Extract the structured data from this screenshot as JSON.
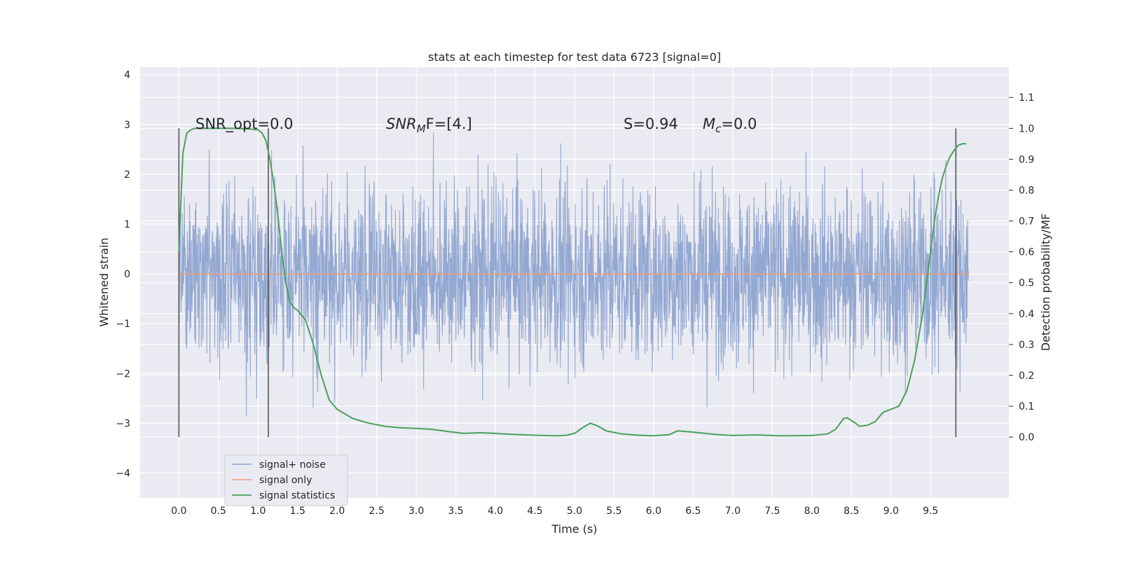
{
  "chart_data": {
    "type": "line",
    "title": "stats at each timestep for test data 6723 [signal=0]",
    "xlabel": "Time (s)",
    "ylabel_left": "Whitened strain",
    "ylabel_right": "Detection probability/MF",
    "xlim": [
      -0.49,
      10.49
    ],
    "ylim_left": [
      -4.5,
      4.15
    ],
    "ylim_right": [
      -0.197,
      1.198
    ],
    "xticks": [
      "0.0",
      "0.5",
      "1.0",
      "1.5",
      "2.0",
      "2.5",
      "3.0",
      "3.5",
      "4.0",
      "4.5",
      "5.0",
      "5.5",
      "6.0",
      "6.5",
      "7.0",
      "7.5",
      "8.0",
      "8.5",
      "9.0",
      "9.5"
    ],
    "yticks_left": [
      "4",
      "3",
      "2",
      "1",
      "0",
      "−1",
      "−2",
      "−3",
      "−4"
    ],
    "yticks_right": [
      "1.1",
      "1.0",
      "0.9",
      "0.8",
      "0.7",
      "0.6",
      "0.5",
      "0.4",
      "0.3",
      "0.2",
      "0.1",
      "0.0"
    ],
    "grid": true,
    "legend_position": "bottom-left",
    "annotations": {
      "snr_opt": "SNR_opt=0.0",
      "snr_mf_main": "SNR",
      "snr_mf_sub": "M",
      "snr_mf_rest": "F=[4.]",
      "s_value": "S=0.94",
      "mc_main": "M",
      "mc_sub": "c",
      "mc_rest": "=0.0"
    },
    "vertical_markers_x": [
      0.0,
      1.13,
      9.82
    ],
    "series": [
      {
        "name": "signal+ noise",
        "color": "#8ea4cf",
        "x_range": [
          0.0,
          9.98
        ],
        "description_values": {
          "typical_amplitude": 1.0,
          "peak_max": 3.7,
          "peak_min": -3.5
        }
      },
      {
        "name": "signal only",
        "color": "#e8a07d",
        "x": [
          0.0,
          9.98
        ],
        "y": [
          0.0,
          0.0
        ]
      },
      {
        "name": "signal statistics",
        "color": "#4c9f5c",
        "x": [
          0.0,
          0.05,
          0.1,
          0.15,
          0.2,
          0.3,
          0.5,
          0.7,
          0.9,
          1.0,
          1.05,
          1.1,
          1.15,
          1.2,
          1.25,
          1.3,
          1.35,
          1.4,
          1.45,
          1.5,
          1.6,
          1.7,
          1.8,
          1.9,
          2.0,
          2.1,
          2.2,
          2.4,
          2.6,
          2.8,
          3.0,
          3.2,
          3.4,
          3.6,
          3.8,
          4.0,
          4.2,
          4.4,
          4.6,
          4.8,
          4.9,
          5.0,
          5.1,
          5.2,
          5.3,
          5.4,
          5.6,
          5.8,
          6.0,
          6.2,
          6.3,
          6.5,
          6.8,
          7.0,
          7.3,
          7.6,
          8.0,
          8.2,
          8.3,
          8.4,
          8.45,
          8.55,
          8.6,
          8.7,
          8.8,
          8.9,
          9.0,
          9.1,
          9.2,
          9.3,
          9.4,
          9.5,
          9.55,
          9.6,
          9.65,
          9.7,
          9.75,
          9.8,
          9.85,
          9.9,
          9.95
        ],
        "y": [
          0.6,
          0.92,
          0.985,
          0.995,
          1.0,
          1.0,
          1.0,
          1.0,
          0.998,
          0.995,
          0.985,
          0.96,
          0.9,
          0.82,
          0.72,
          0.6,
          0.5,
          0.44,
          0.42,
          0.41,
          0.38,
          0.3,
          0.2,
          0.12,
          0.09,
          0.075,
          0.06,
          0.045,
          0.035,
          0.03,
          0.028,
          0.025,
          0.018,
          0.012,
          0.014,
          0.012,
          0.009,
          0.007,
          0.005,
          0.004,
          0.006,
          0.012,
          0.03,
          0.045,
          0.035,
          0.02,
          0.01,
          0.006,
          0.004,
          0.008,
          0.02,
          0.016,
          0.008,
          0.005,
          0.007,
          0.004,
          0.005,
          0.01,
          0.025,
          0.06,
          0.062,
          0.045,
          0.035,
          0.038,
          0.05,
          0.08,
          0.09,
          0.1,
          0.15,
          0.25,
          0.4,
          0.6,
          0.7,
          0.78,
          0.84,
          0.88,
          0.91,
          0.93,
          0.945,
          0.95,
          0.95
        ]
      }
    ]
  }
}
